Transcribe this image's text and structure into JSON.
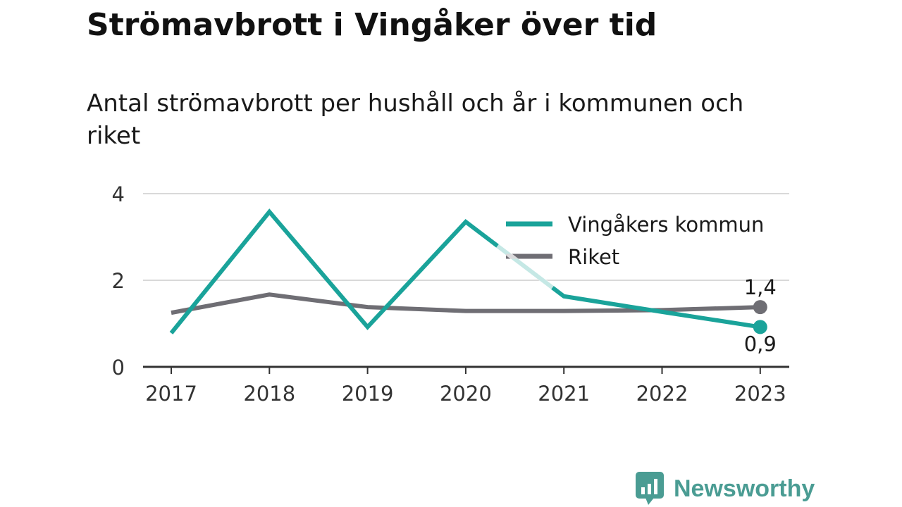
{
  "title": "Strömavbrott i Vingåker över tid",
  "subtitle": "Antal strömavbrott per hushåll och år i kommunen och riket",
  "brand": {
    "name": "Newsworthy",
    "color": "#4a9c93",
    "icon": "bar-chart-speech-bubble-icon"
  },
  "chart_data": {
    "type": "line",
    "x": [
      "2017",
      "2018",
      "2019",
      "2020",
      "2021",
      "2022",
      "2023"
    ],
    "ylim": [
      0,
      4
    ],
    "yticks": [
      "0",
      "2",
      "4"
    ],
    "grid": true,
    "legend_position": "top-right",
    "series": [
      {
        "name": "Vingåkers kommun",
        "color": "#1aa39a",
        "values": [
          0.78,
          3.58,
          0.92,
          3.35,
          1.63,
          1.27,
          0.92
        ],
        "end_label": "0,9"
      },
      {
        "name": "Riket",
        "color": "#6f6e74",
        "values": [
          1.25,
          1.67,
          1.38,
          1.29,
          1.29,
          1.31,
          1.38
        ],
        "end_label": "1,4"
      }
    ]
  }
}
